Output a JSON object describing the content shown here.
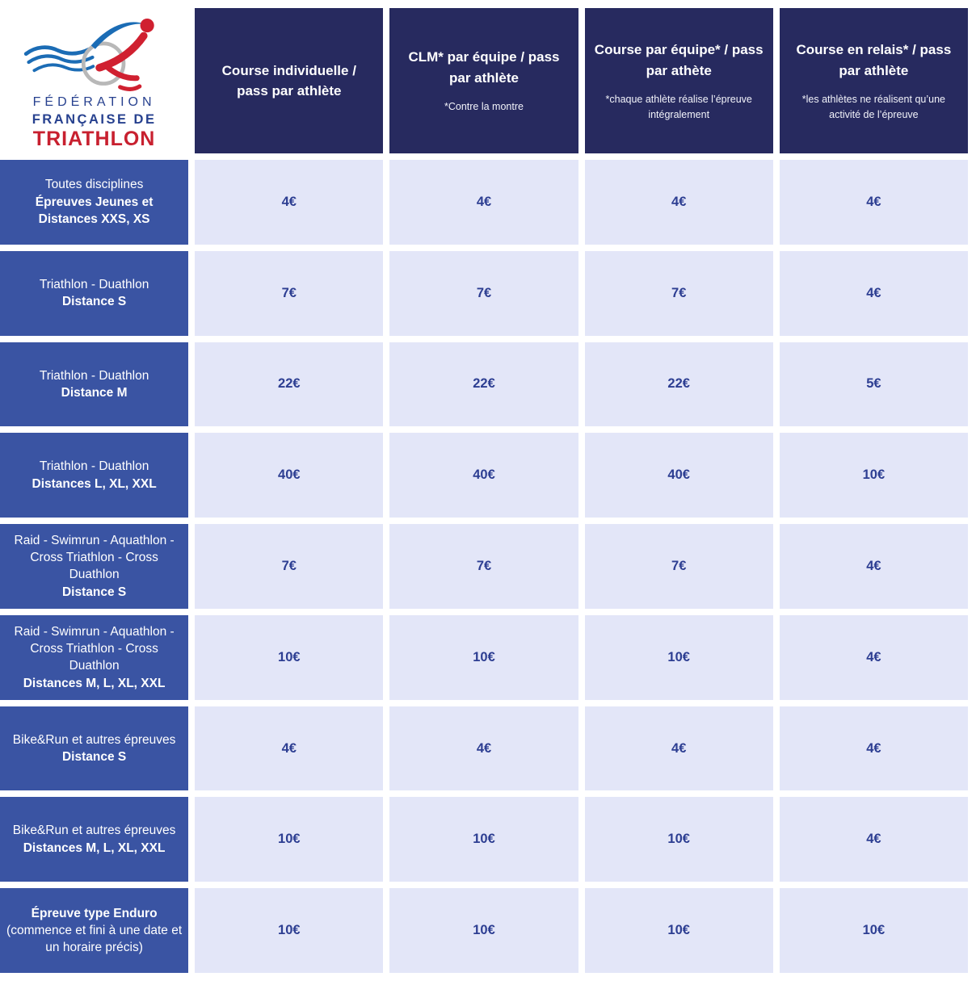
{
  "logo": {
    "line1": "FÉDÉRATION",
    "line2": "FRANÇAISE DE",
    "line3": "TRIATHLON"
  },
  "columns": [
    {
      "title": "Course individuelle / pass par athlète",
      "note": ""
    },
    {
      "title": "CLM* par équipe / pass par athlète",
      "note": "*Contre la montre"
    },
    {
      "title": "Course par équipe* / pass par athète",
      "note": "*chaque athlète réalise l’épreuve intégralement"
    },
    {
      "title": "Course en relais* / pass par athlète",
      "note": "*les athlètes ne réalisent qu’une activité de l’épreuve"
    }
  ],
  "rows": [
    {
      "lines": [
        {
          "text": "Toutes disciplines",
          "bold": false
        },
        {
          "text": "Épreuves Jeunes et Distances XXS, XS",
          "bold": true
        }
      ],
      "prices": [
        "4€",
        "4€",
        "4€",
        "4€"
      ]
    },
    {
      "lines": [
        {
          "text": "Triathlon - Duathlon",
          "bold": false
        },
        {
          "text": "Distance S",
          "bold": true
        }
      ],
      "prices": [
        "7€",
        "7€",
        "7€",
        "4€"
      ]
    },
    {
      "lines": [
        {
          "text": "Triathlon - Duathlon",
          "bold": false
        },
        {
          "text": "Distance M",
          "bold": true
        }
      ],
      "prices": [
        "22€",
        "22€",
        "22€",
        "5€"
      ]
    },
    {
      "lines": [
        {
          "text": "Triathlon - Duathlon",
          "bold": false
        },
        {
          "text": "Distances L, XL, XXL",
          "bold": true
        }
      ],
      "prices": [
        "40€",
        "40€",
        "40€",
        "10€"
      ]
    },
    {
      "lines": [
        {
          "text": "Raid - Swimrun - Aquathlon - Cross Triathlon - Cross Duathlon",
          "bold": false
        },
        {
          "text": "Distance S",
          "bold": true
        }
      ],
      "prices": [
        "7€",
        "7€",
        "7€",
        "4€"
      ]
    },
    {
      "lines": [
        {
          "text": "Raid - Swimrun - Aquathlon - Cross Triathlon - Cross Duathlon",
          "bold": false
        },
        {
          "text": "Distances M, L, XL, XXL",
          "bold": true
        }
      ],
      "prices": [
        "10€",
        "10€",
        "10€",
        "4€"
      ]
    },
    {
      "lines": [
        {
          "text": "Bike&Run et autres épreuves",
          "bold": false
        },
        {
          "text": "Distance S",
          "bold": true
        }
      ],
      "prices": [
        "4€",
        "4€",
        "4€",
        "4€"
      ]
    },
    {
      "lines": [
        {
          "text": "Bike&Run et autres épreuves",
          "bold": false
        },
        {
          "text": "Distances M, L, XL, XXL",
          "bold": true
        }
      ],
      "prices": [
        "10€",
        "10€",
        "10€",
        "4€"
      ]
    },
    {
      "lines": [
        {
          "text": "Épreuve type Enduro",
          "bold": true
        },
        {
          "text": "(commence et fini à une date et un horaire précis)",
          "bold": false
        }
      ],
      "prices": [
        "10€",
        "10€",
        "10€",
        "10€"
      ]
    }
  ],
  "colors": {
    "header_bg": "#272a5f",
    "row_bg": "#3a54a3",
    "cell_bg": "#e3e6f8",
    "price_color": "#2d3e92",
    "logo_blue": "#27418f",
    "logo_red": "#c8202f",
    "wave_blue": "#1b6cb5",
    "wheel_gray": "#b8b8b8",
    "gap_white": "#ffffff"
  }
}
